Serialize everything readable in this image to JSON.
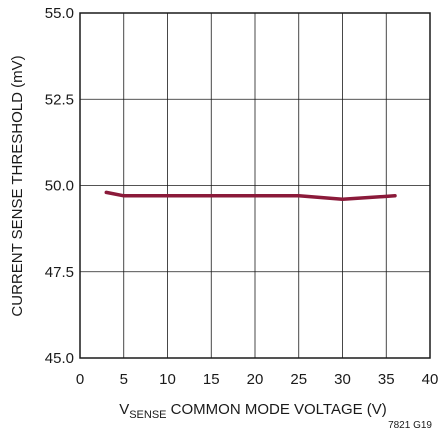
{
  "chart_data": {
    "type": "line",
    "xlabel_main": "V",
    "xlabel_sub": "SENSE",
    "xlabel_rest": " COMMON MODE VOLTAGE (V)",
    "ylabel": "CURRENT SENSE THRESHOLD (mV)",
    "xlim": [
      0,
      40
    ],
    "ylim": [
      45.0,
      55.0
    ],
    "x_ticks": [
      0,
      5,
      10,
      15,
      20,
      25,
      30,
      35,
      40
    ],
    "x_tick_labels": [
      "0",
      "5",
      "10",
      "15",
      "20",
      "25",
      "30",
      "35",
      "40"
    ],
    "y_ticks": [
      45.0,
      47.5,
      50.0,
      52.5,
      55.0
    ],
    "y_tick_labels": [
      "45.0",
      "47.5",
      "50.0",
      "52.5",
      "55.0"
    ],
    "grid": true,
    "series": [
      {
        "x": [
          3,
          5,
          10,
          15,
          20,
          25,
          30,
          36
        ],
        "y": [
          49.8,
          49.7,
          49.7,
          49.7,
          49.7,
          49.7,
          49.6,
          49.7
        ],
        "color": "#8b1a3a"
      }
    ],
    "figure_id": "7821 G19"
  }
}
